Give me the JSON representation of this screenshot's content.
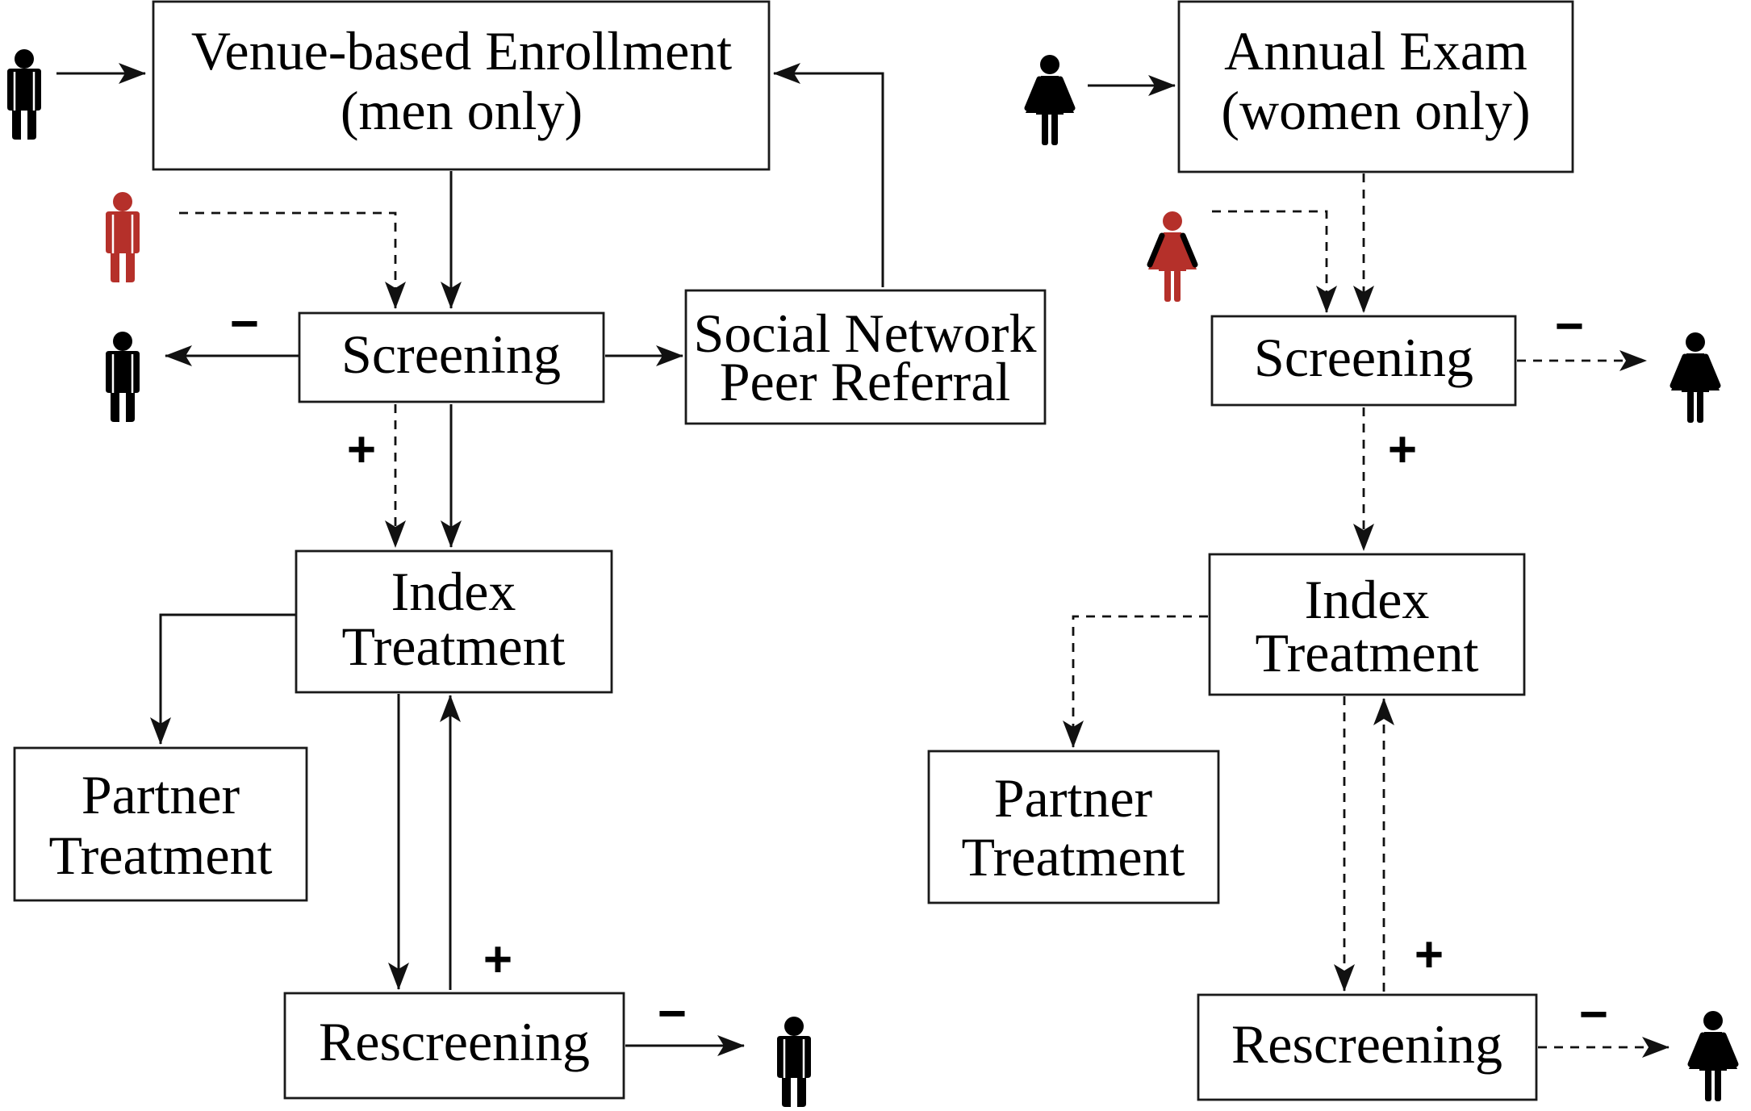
{
  "men_flow": {
    "enrollment": {
      "line1": "Venue-based Enrollment",
      "line2": "(men only)"
    },
    "screening": "Screening",
    "referral": {
      "line1": "Social Network",
      "line2": "Peer Referral"
    },
    "index_treatment": {
      "line1": "Index",
      "line2": "Treatment"
    },
    "partner_treatment": {
      "line1": "Partner",
      "line2": "Treatment"
    },
    "rescreening": "Rescreening",
    "negative_sign": "−",
    "positive_sign": "+",
    "rescreen_positive_sign": "+",
    "rescreen_negative_sign": "−"
  },
  "women_flow": {
    "exam": {
      "line1": "Annual Exam",
      "line2": "(women only)"
    },
    "screening": "Screening",
    "index_treatment": {
      "line1": "Index",
      "line2": "Treatment"
    },
    "partner_treatment": {
      "line1": "Partner",
      "line2": "Treatment"
    },
    "rescreening": "Rescreening",
    "negative_sign": "−",
    "positive_sign": "+",
    "rescreen_positive_sign": "+",
    "rescreen_negative_sign": "−"
  },
  "colors": {
    "healthy": "#000000",
    "infected": "#b5302a",
    "line": "#111111"
  },
  "icons": {
    "man": "man-icon",
    "woman": "woman-icon"
  }
}
